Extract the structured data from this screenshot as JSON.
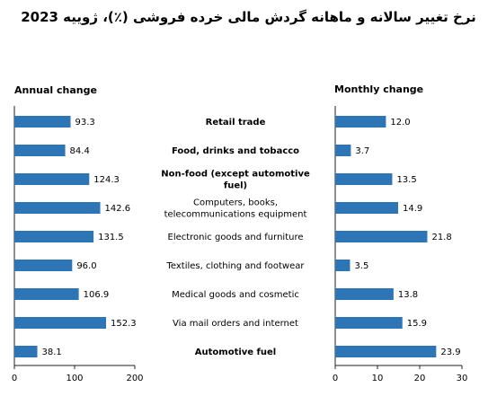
{
  "title": "نرخ تغییر سالانه و ماهانه گردش مالی خرده فروشی (٪)، ژوییه 2023",
  "chart_data": [
    {
      "type": "bar",
      "orientation": "horizontal",
      "title": "Annual change",
      "categories": [
        "Retail trade",
        "Food, drinks and tobacco",
        "Non-food (except automotive fuel)",
        "Computers, books, telecommunications equipment",
        "Electronic goods and furniture",
        "Textiles, clothing and footwear",
        "Medical goods and cosmetic",
        "Via mail orders and internet",
        "Automotive fuel"
      ],
      "values": [
        93.3,
        84.4,
        124.3,
        142.6,
        131.5,
        96.0,
        106.9,
        152.3,
        38.1
      ],
      "value_labels": [
        "93.3",
        "84.4",
        "124.3",
        "142.6",
        "131.5",
        "96.0",
        "106.9",
        "152.3",
        "38.1"
      ],
      "xlim": [
        0,
        200
      ],
      "xticks": [
        0,
        100,
        200
      ],
      "bar_color": "#2e75b6",
      "grid": false
    },
    {
      "type": "bar",
      "orientation": "horizontal",
      "title": "Monthly change",
      "categories": [
        "Retail trade",
        "Food, drinks and tobacco",
        "Non-food (except automotive fuel)",
        "Computers, books, telecommunications equipment",
        "Electronic goods and furniture",
        "Textiles, clothing and footwear",
        "Medical goods and cosmetic",
        "Via mail orders and internet",
        "Automotive fuel"
      ],
      "values": [
        12.0,
        3.7,
        13.5,
        14.9,
        21.8,
        3.5,
        13.8,
        15.9,
        23.9
      ],
      "value_labels": [
        "12.0",
        "3.7",
        "13.5",
        "14.9",
        "21.8",
        "3.5",
        "13.8",
        "15.9",
        "23.9"
      ],
      "xlim": [
        0,
        30
      ],
      "xticks": [
        0,
        10,
        20,
        30
      ],
      "bar_color": "#2e75b6",
      "grid": false
    }
  ],
  "category_labels": [
    {
      "lines": [
        "Retail trade"
      ],
      "bold": true
    },
    {
      "lines": [
        "Food, drinks and tobacco"
      ],
      "bold": true
    },
    {
      "lines": [
        "Non-food (except automotive",
        "fuel)"
      ],
      "bold": true
    },
    {
      "lines": [
        "Computers, books,",
        "telecommunications equipment"
      ],
      "bold": false
    },
    {
      "lines": [
        "Electronic goods and furniture"
      ],
      "bold": false
    },
    {
      "lines": [
        "Textiles, clothing and footwear"
      ],
      "bold": false
    },
    {
      "lines": [
        "Medical goods and cosmetic"
      ],
      "bold": false
    },
    {
      "lines": [
        "Via mail orders and internet"
      ],
      "bold": false
    },
    {
      "lines": [
        "Automotive fuel"
      ],
      "bold": true
    }
  ]
}
